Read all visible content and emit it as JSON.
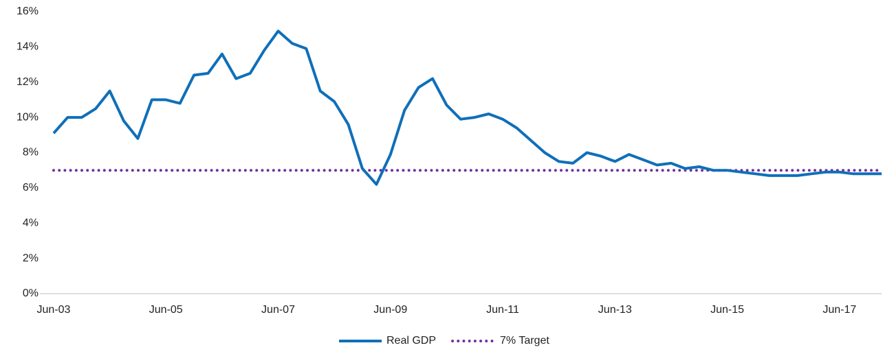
{
  "chart_data": {
    "type": "line",
    "categories": [
      "Jun-03",
      null,
      null,
      null,
      null,
      null,
      null,
      null,
      "Jun-05",
      null,
      null,
      null,
      null,
      null,
      null,
      null,
      "Jun-07",
      null,
      null,
      null,
      null,
      null,
      null,
      null,
      "Jun-09",
      null,
      null,
      null,
      null,
      null,
      null,
      null,
      "Jun-11",
      null,
      null,
      null,
      null,
      null,
      null,
      null,
      "Jun-13",
      null,
      null,
      null,
      null,
      null,
      null,
      null,
      "Jun-15",
      null,
      null,
      null,
      null,
      null,
      null,
      null,
      "Jun-17",
      null,
      null,
      null
    ],
    "series": [
      {
        "name": "Real GDP",
        "color": "#0f6fb9",
        "style": "solid",
        "values": [
          9.1,
          10.0,
          10.0,
          10.5,
          11.5,
          9.8,
          8.8,
          11.0,
          11.0,
          10.8,
          12.4,
          12.5,
          13.6,
          12.2,
          12.5,
          13.8,
          14.9,
          14.2,
          13.9,
          11.5,
          10.9,
          9.6,
          7.1,
          6.2,
          7.9,
          10.4,
          11.7,
          12.2,
          10.7,
          9.9,
          10.0,
          10.2,
          9.9,
          9.4,
          8.7,
          8.0,
          7.5,
          7.4,
          8.0,
          7.8,
          7.5,
          7.9,
          7.6,
          7.3,
          7.4,
          7.1,
          7.2,
          7.0,
          7.0,
          6.9,
          6.8,
          6.7,
          6.7,
          6.7,
          6.8,
          6.9,
          6.9,
          6.8,
          6.8,
          6.8
        ]
      },
      {
        "name": "7% Target",
        "color": "#7030a0",
        "style": "dotted",
        "values": [
          7,
          7,
          7,
          7,
          7,
          7,
          7,
          7,
          7,
          7,
          7,
          7,
          7,
          7,
          7,
          7,
          7,
          7,
          7,
          7,
          7,
          7,
          7,
          7,
          7,
          7,
          7,
          7,
          7,
          7,
          7,
          7,
          7,
          7,
          7,
          7,
          7,
          7,
          7,
          7,
          7,
          7,
          7,
          7,
          7,
          7,
          7,
          7,
          7,
          7,
          7,
          7,
          7,
          7,
          7,
          7,
          7,
          7,
          7,
          7
        ]
      }
    ],
    "ylim": [
      0,
      16
    ],
    "yticks": [
      {
        "value": 0,
        "label": "0%"
      },
      {
        "value": 2,
        "label": "2%"
      },
      {
        "value": 4,
        "label": "4%"
      },
      {
        "value": 6,
        "label": "6%"
      },
      {
        "value": 8,
        "label": "8%"
      },
      {
        "value": 10,
        "label": "10%"
      },
      {
        "value": 12,
        "label": "12%"
      },
      {
        "value": 14,
        "label": "14%"
      },
      {
        "value": 16,
        "label": "16%"
      }
    ],
    "grid": false,
    "legend": "bottom"
  }
}
